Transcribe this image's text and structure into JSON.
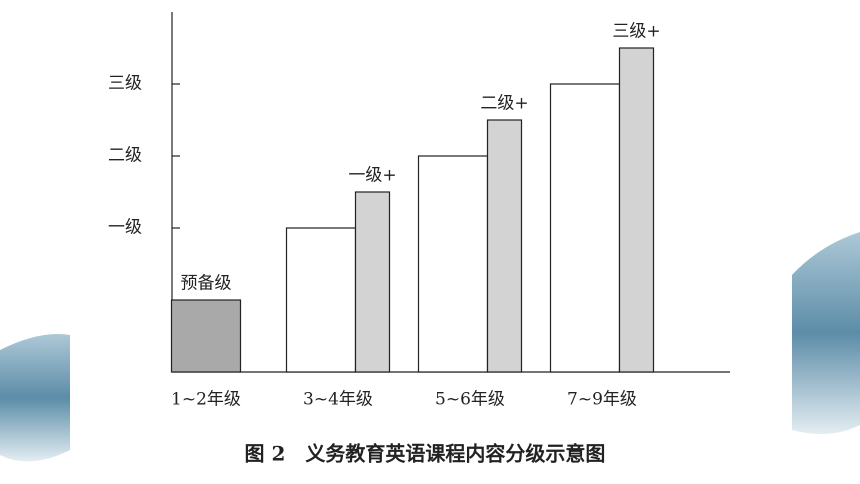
{
  "chart_data": {
    "type": "bar",
    "title": "图 2　义务教育英语课程内容分级示意图",
    "categories": [
      "1~2年级",
      "3~4年级",
      "5~6年级",
      "7~9年级"
    ],
    "series": [
      {
        "color": "#a9a9a9",
        "values": [
          1,
          null,
          null,
          null
        ],
        "value_labels": [
          "预备级",
          null,
          null,
          null
        ]
      },
      {
        "color": "#ffffff",
        "values": [
          null,
          2,
          3,
          4
        ]
      },
      {
        "color": "#d3d3d3",
        "values": [
          null,
          2.5,
          3.5,
          4.5
        ],
        "value_labels": [
          null,
          "一级+",
          "二级+",
          "三级+"
        ]
      }
    ],
    "ylim": [
      0,
      5
    ],
    "yticks": [
      {
        "value": 2,
        "label": "一级"
      },
      {
        "value": 3,
        "label": "二级"
      },
      {
        "value": 4,
        "label": "三级"
      }
    ]
  }
}
